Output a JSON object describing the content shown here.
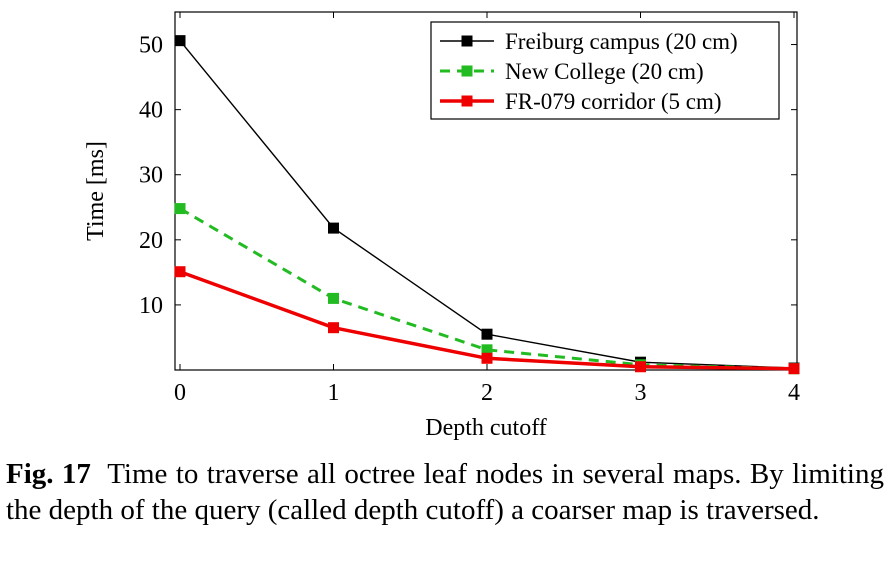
{
  "chart_data": {
    "type": "line",
    "xlabel": "Depth cutoff",
    "ylabel": "Time [ms]",
    "xlim": [
      0,
      4
    ],
    "ylim": [
      0,
      55
    ],
    "x": [
      0,
      1,
      2,
      3,
      4
    ],
    "xticks": [
      "0",
      "1",
      "2",
      "3",
      "4"
    ],
    "yticks": [
      "10",
      "20",
      "30",
      "40",
      "50"
    ],
    "legend_position": "top-right",
    "grid": false,
    "series": [
      {
        "name": "Freiburg campus (20 cm)",
        "values": [
          50.6,
          21.8,
          5.5,
          1.2,
          0.3
        ],
        "color": "#000000",
        "style": "solid"
      },
      {
        "name": "New College (20 cm)",
        "values": [
          24.8,
          11.0,
          3.1,
          0.8,
          0.2
        ],
        "color": "#22bb22",
        "style": "dashed"
      },
      {
        "name": "FR-079 corridor (5 cm)",
        "values": [
          15.1,
          6.5,
          1.8,
          0.5,
          0.2
        ],
        "color": "#ee0000",
        "style": "solid-thick"
      }
    ]
  },
  "caption": {
    "label": "Fig. 17",
    "text": "Time to traverse all octree leaf nodes in several maps. By limiting the depth of the query (called depth cutoff) a coarser map is traversed."
  }
}
